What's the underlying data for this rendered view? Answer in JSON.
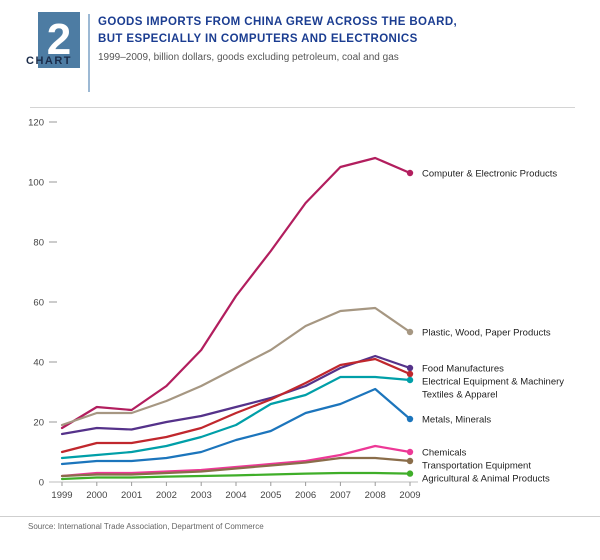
{
  "header": {
    "chart_label": "CHART",
    "chart_number": "2",
    "title_line1": "GOODS IMPORTS FROM CHINA GREW ACROSS THE BOARD,",
    "title_line2": "BUT ESPECIALLY IN COMPUTERS AND ELECTRONICS",
    "subtitle": "1999–2009, billion dollars, goods excluding petroleum, coal and gas"
  },
  "source": "Source: International Trade Association, Department of Commerce",
  "colors": {
    "title": "#1b3d91",
    "badge": "#4d7ca3"
  },
  "chart_data": {
    "type": "line",
    "x": [
      1999,
      2000,
      2001,
      2002,
      2003,
      2004,
      2005,
      2006,
      2007,
      2008,
      2009
    ],
    "ylim": [
      0,
      120
    ],
    "y_ticks": [
      0,
      20,
      40,
      60,
      80,
      100,
      120
    ],
    "xlabel": "",
    "ylabel": "",
    "grid": false,
    "legend_position": "right-of-line-ends",
    "series": [
      {
        "name": "Computer & Electronic Products",
        "color": "#b21e5e",
        "values": [
          18,
          25,
          24,
          32,
          44,
          62,
          77,
          93,
          105,
          108,
          103
        ]
      },
      {
        "name": "Plastic, Wood, Paper Products",
        "color": "#a69782",
        "values": [
          19,
          23,
          23,
          27,
          32,
          38,
          44,
          52,
          57,
          58,
          50
        ]
      },
      {
        "name": "Food Manufactures",
        "color": "#55328a",
        "values": [
          16,
          18,
          17.5,
          20,
          22,
          25,
          28,
          32,
          38,
          42,
          38
        ]
      },
      {
        "name": "Electrical Equipment & Machinery",
        "color": "#c0272d",
        "values": [
          10,
          13,
          13,
          15,
          18,
          23,
          27.5,
          33,
          39,
          41,
          36
        ]
      },
      {
        "name": "Textiles & Apparel",
        "color": "#009fa8",
        "values": [
          8,
          9,
          10,
          12,
          15,
          19,
          26,
          29,
          35,
          35,
          34
        ]
      },
      {
        "name": "Metals, Minerals",
        "color": "#1c75bc",
        "values": [
          6,
          7,
          7,
          8,
          10,
          14,
          17,
          23,
          26,
          31,
          21
        ]
      },
      {
        "name": "Chemicals",
        "color": "#ed3896",
        "values": [
          2,
          3,
          3,
          3.5,
          4,
          5,
          6,
          7,
          9,
          12,
          10
        ]
      },
      {
        "name": "Transportation Equipment",
        "color": "#8a6d4a",
        "values": [
          2,
          2.5,
          2.5,
          3,
          3.5,
          4.5,
          5.5,
          6.5,
          8,
          8,
          7
        ]
      },
      {
        "name": "Agricultural & Animal Products",
        "color": "#3fae29",
        "values": [
          1,
          1.5,
          1.5,
          1.8,
          2,
          2.2,
          2.5,
          2.8,
          3,
          3,
          2.8
        ]
      }
    ]
  }
}
